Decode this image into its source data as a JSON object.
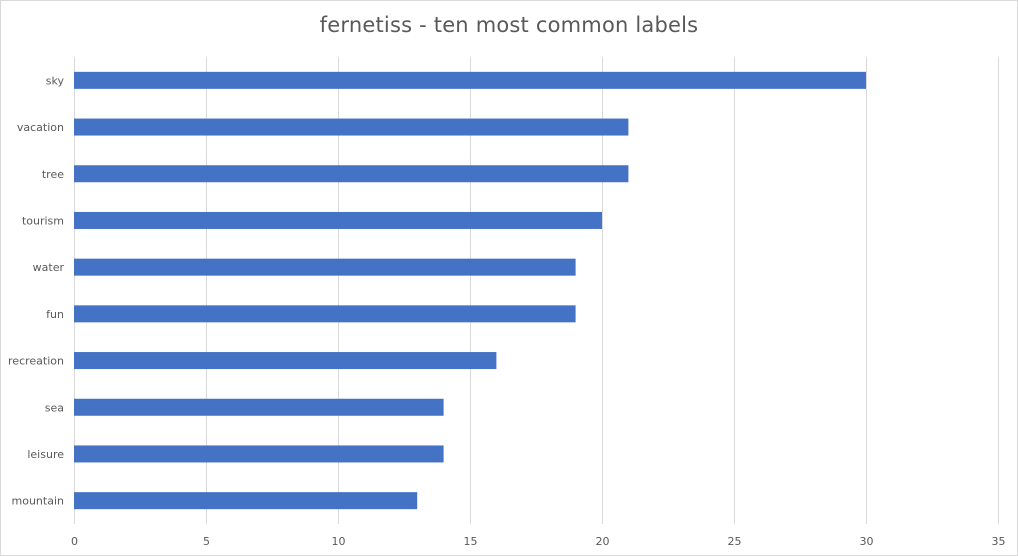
{
  "chart_data": {
    "type": "bar",
    "orientation": "horizontal",
    "title": "fernetiss - ten most common labels",
    "categories": [
      "sky",
      "vacation",
      "tree",
      "tourism",
      "water",
      "fun",
      "recreation",
      "sea",
      "leisure",
      "mountain"
    ],
    "values": [
      30,
      21,
      21,
      20,
      19,
      19,
      16,
      14,
      14,
      13
    ],
    "xlim": [
      0,
      35
    ],
    "x_ticks": [
      0,
      5,
      10,
      15,
      20,
      25,
      30,
      35
    ],
    "grid": true,
    "legend": "none",
    "bar_color": "#4472c4",
    "grid_color": "#d9d9d9",
    "text_color": "#595959"
  }
}
